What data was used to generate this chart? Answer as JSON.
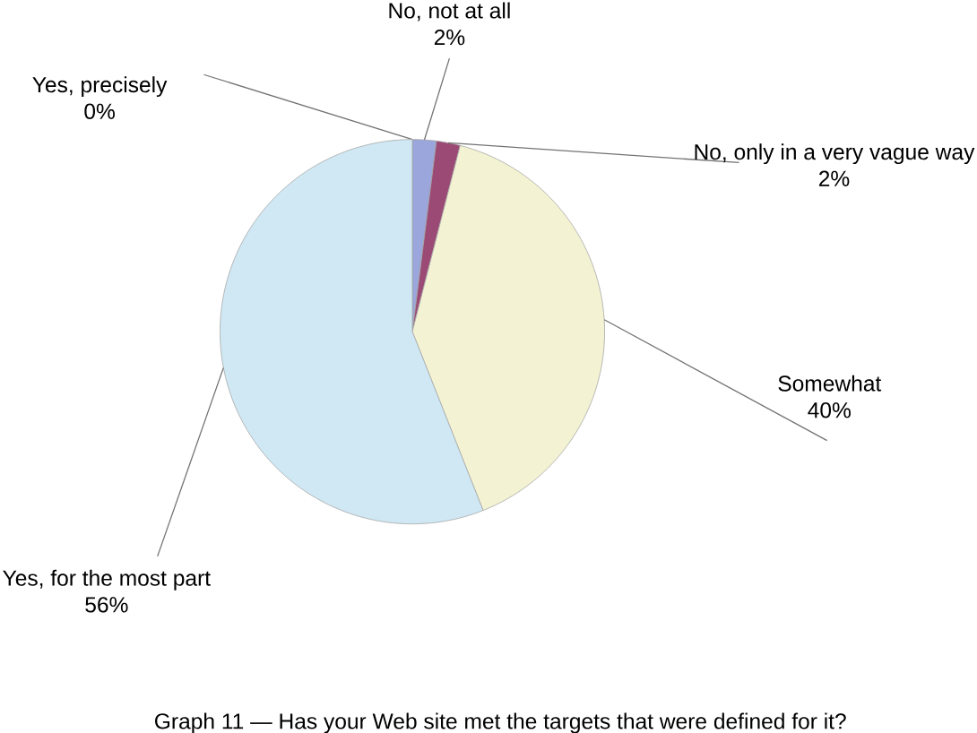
{
  "chart_data": {
    "type": "pie",
    "categories": [
      "Yes, precisely",
      "No, not at all",
      "No, only in a very vague way",
      "Somewhat",
      "Yes, for the most part"
    ],
    "values": [
      0,
      2,
      2,
      40,
      56
    ],
    "value_labels": [
      "0%",
      "2%",
      "2%",
      "40%",
      "56%"
    ],
    "colors": [
      "#4f81bd",
      "#9aa6dc",
      "#9b4a75",
      "#f3f2d3",
      "#cfe8f4"
    ],
    "annotations": [
      "Graph 11 — Has your Web site met the targets that were defined for it?"
    ]
  }
}
